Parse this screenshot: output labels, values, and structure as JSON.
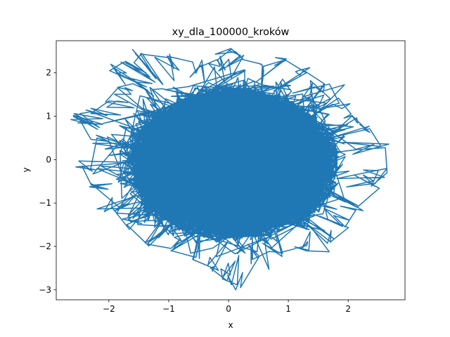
{
  "chart_data": {
    "type": "line",
    "title": "xy_dla_100000_kroków",
    "xlabel": "x",
    "ylabel": "y",
    "xlim": [
      -2.88,
      2.95
    ],
    "ylim": [
      -3.23,
      2.74
    ],
    "xticks": [
      -2,
      -1,
      0,
      1,
      2
    ],
    "yticks": [
      -3,
      -2,
      -1,
      0,
      1,
      2
    ],
    "grid": false,
    "series": [
      {
        "color": "#1f77b4",
        "description_of_shape": "dense random-walk trajectory filling an approximately circular region of radius ~2 around the origin",
        "outline_points": {
          "x": [
            -2.6,
            -2.3,
            -2.0,
            -1.85,
            -1.6,
            -1.9,
            -1.75,
            -1.45,
            -1.0,
            -0.6,
            -0.2,
            0.05,
            0.2,
            0.55,
            0.95,
            1.3,
            1.6,
            1.85,
            2.05,
            2.3,
            2.55,
            2.65,
            2.45,
            2.15,
            1.95,
            1.7,
            1.3,
            0.85,
            0.4,
            0.2,
            -0.1,
            -0.3,
            -0.6,
            -0.95,
            -1.35,
            -1.7,
            -1.95,
            -2.3,
            -2.45,
            -2.2,
            -2.5
          ],
          "y": [
            1.0,
            1.1,
            1.35,
            1.65,
            1.75,
            2.1,
            2.25,
            2.45,
            2.35,
            2.25,
            2.3,
            2.55,
            2.4,
            2.2,
            2.3,
            2.0,
            1.75,
            1.3,
            1.05,
            0.7,
            0.3,
            -0.3,
            -0.55,
            -1.1,
            -1.55,
            -1.9,
            -2.1,
            -2.15,
            -2.3,
            -2.95,
            -2.75,
            -2.5,
            -2.3,
            -2.1,
            -1.95,
            -1.5,
            -1.1,
            -0.55,
            -0.15,
            0.5,
            0.95
          ]
        }
      }
    ]
  }
}
